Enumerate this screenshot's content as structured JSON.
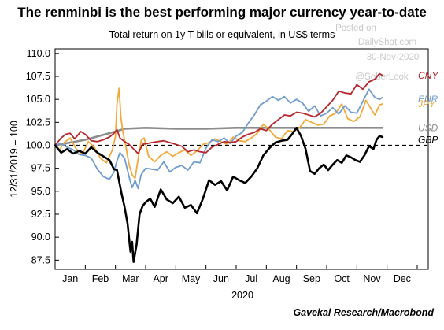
{
  "chart_data": {
    "type": "line",
    "title": "The renminbi is the best performing major currency year-to-date",
    "subtitle": "Total return on 1y T-bills or equivalent, in US$ terms",
    "ylabel": "12/31/2019 = 100",
    "xlabel": "2020",
    "source": "Gavekal Research/Macrobond",
    "watermark": [
      "Posted on",
      "DailyShot.com",
      "30-Nov-2020",
      "@SoberLook"
    ],
    "ylim": [
      86.5,
      110.5
    ],
    "yticks": [
      "87.5",
      "90.0",
      "92.5",
      "95.0",
      "97.5",
      "100.0",
      "102.5",
      "105.0",
      "107.5",
      "110.0"
    ],
    "xlim": [
      0,
      12
    ],
    "month_labels": [
      "Jan",
      "Feb",
      "Mar",
      "Apr",
      "May",
      "Jun",
      "Jul",
      "Aug",
      "Sep",
      "Oct",
      "Nov",
      "Dec"
    ],
    "reference_line": {
      "y": 100,
      "style": "dashed"
    },
    "grid": false,
    "series": [
      {
        "name": "USD",
        "color": "#8c8c8c",
        "width": 2.6,
        "label_y": 101.9,
        "points": [
          [
            0,
            100
          ],
          [
            1,
            100.6
          ],
          [
            2,
            101.5
          ],
          [
            2.3,
            101.8
          ],
          [
            3,
            101.9
          ],
          [
            4,
            101.8
          ],
          [
            5,
            101.8
          ],
          [
            6,
            101.9
          ],
          [
            7,
            101.9
          ],
          [
            8,
            101.9
          ],
          [
            9,
            101.9
          ],
          [
            10,
            101.9
          ],
          [
            10.85,
            101.9
          ]
        ]
      },
      {
        "name": "JPY",
        "color": "#f2a93b",
        "width": 1.8,
        "label_y": 104.5,
        "points": [
          [
            0,
            100
          ],
          [
            0.15,
            99.5
          ],
          [
            0.3,
            100.3
          ],
          [
            0.5,
            100.8
          ],
          [
            0.7,
            99.6
          ],
          [
            0.9,
            99
          ],
          [
            1.1,
            100.4
          ],
          [
            1.3,
            99.8
          ],
          [
            1.5,
            98.6
          ],
          [
            1.7,
            98.1
          ],
          [
            1.9,
            99.5
          ],
          [
            2.0,
            101
          ],
          [
            2.05,
            104.5
          ],
          [
            2.12,
            106.2
          ],
          [
            2.18,
            103
          ],
          [
            2.25,
            101.4
          ],
          [
            2.35,
            99.8
          ],
          [
            2.45,
            97.9
          ],
          [
            2.55,
            96.8
          ],
          [
            2.65,
            96.4
          ],
          [
            2.75,
            98.5
          ],
          [
            2.85,
            100.5
          ],
          [
            2.95,
            100.8
          ],
          [
            3.1,
            98.8
          ],
          [
            3.3,
            98.2
          ],
          [
            3.5,
            98.9
          ],
          [
            3.7,
            99.3
          ],
          [
            3.9,
            98.8
          ],
          [
            4.1,
            99.2
          ],
          [
            4.3,
            99.5
          ],
          [
            4.5,
            98.9
          ],
          [
            4.7,
            99.4
          ],
          [
            4.9,
            100.1
          ],
          [
            5.1,
            100.3
          ],
          [
            5.3,
            100.7
          ],
          [
            5.5,
            100.4
          ],
          [
            5.7,
            100.1
          ],
          [
            5.9,
            100.9
          ],
          [
            6.1,
            100.5
          ],
          [
            6.3,
            100.4
          ],
          [
            6.5,
            100.8
          ],
          [
            6.7,
            101.3
          ],
          [
            6.9,
            102.3
          ],
          [
            7.1,
            101.7
          ],
          [
            7.3,
            100.9
          ],
          [
            7.5,
            100.7
          ],
          [
            7.7,
            101.6
          ],
          [
            7.9,
            101.5
          ],
          [
            8.1,
            101.9
          ],
          [
            8.3,
            102.8
          ],
          [
            8.5,
            102.5
          ],
          [
            8.7,
            102.2
          ],
          [
            8.9,
            102.3
          ],
          [
            9.1,
            103.2
          ],
          [
            9.3,
            103.5
          ],
          [
            9.5,
            104.5
          ],
          [
            9.7,
            102.9
          ],
          [
            9.9,
            102.6
          ],
          [
            10.1,
            103.1
          ],
          [
            10.3,
            104.9
          ],
          [
            10.5,
            103.8
          ],
          [
            10.6,
            103.3
          ],
          [
            10.75,
            104.4
          ],
          [
            10.85,
            104.5
          ]
        ]
      },
      {
        "name": "EUR",
        "color": "#6f9ccf",
        "width": 1.8,
        "label_y": 105.0,
        "points": [
          [
            0,
            100
          ],
          [
            0.2,
            100.2
          ],
          [
            0.4,
            99.8
          ],
          [
            0.6,
            99.5
          ],
          [
            0.8,
            99
          ],
          [
            1.0,
            98.9
          ],
          [
            1.2,
            98.6
          ],
          [
            1.4,
            97.4
          ],
          [
            1.6,
            96.6
          ],
          [
            1.8,
            96.3
          ],
          [
            1.95,
            97.1
          ],
          [
            2.05,
            98.3
          ],
          [
            2.15,
            99.2
          ],
          [
            2.3,
            98.6
          ],
          [
            2.45,
            96.6
          ],
          [
            2.55,
            95.4
          ],
          [
            2.65,
            96.2
          ],
          [
            2.75,
            95.3
          ],
          [
            2.85,
            96.8
          ],
          [
            3.0,
            97.5
          ],
          [
            3.2,
            97.4
          ],
          [
            3.4,
            97.3
          ],
          [
            3.6,
            98.2
          ],
          [
            3.8,
            97.1
          ],
          [
            4.0,
            97.6
          ],
          [
            4.2,
            97.8
          ],
          [
            4.4,
            97.3
          ],
          [
            4.6,
            98.2
          ],
          [
            4.8,
            98.1
          ],
          [
            5.0,
            99.7
          ],
          [
            5.2,
            100.6
          ],
          [
            5.4,
            100.4
          ],
          [
            5.6,
            100.8
          ],
          [
            5.8,
            100.2
          ],
          [
            6.0,
            101
          ],
          [
            6.2,
            101.4
          ],
          [
            6.4,
            102.4
          ],
          [
            6.6,
            103.3
          ],
          [
            6.8,
            104.4
          ],
          [
            7.0,
            104.8
          ],
          [
            7.2,
            105.3
          ],
          [
            7.4,
            104.9
          ],
          [
            7.6,
            105.3
          ],
          [
            7.8,
            104.6
          ],
          [
            8.0,
            105
          ],
          [
            8.2,
            104.6
          ],
          [
            8.4,
            103.7
          ],
          [
            8.6,
            104.3
          ],
          [
            8.8,
            103.2
          ],
          [
            9.0,
            103.5
          ],
          [
            9.2,
            104.1
          ],
          [
            9.4,
            103.4
          ],
          [
            9.6,
            104.3
          ],
          [
            9.8,
            103.6
          ],
          [
            10.0,
            103.5
          ],
          [
            10.2,
            104.8
          ],
          [
            10.4,
            106.1
          ],
          [
            10.6,
            105.2
          ],
          [
            10.75,
            105
          ],
          [
            10.85,
            105.2
          ]
        ]
      },
      {
        "name": "CNY",
        "color": "#b5282e",
        "width": 1.8,
        "label_y": 107.6,
        "points": [
          [
            0,
            100
          ],
          [
            0.2,
            100.8
          ],
          [
            0.35,
            101.2
          ],
          [
            0.5,
            101.3
          ],
          [
            0.65,
            100.7
          ],
          [
            0.85,
            101.5
          ],
          [
            1.0,
            101.2
          ],
          [
            1.2,
            100.5
          ],
          [
            1.4,
            100.4
          ],
          [
            1.6,
            100.6
          ],
          [
            1.8,
            100.9
          ],
          [
            1.95,
            101.3
          ],
          [
            2.05,
            101.7
          ],
          [
            2.15,
            100.8
          ],
          [
            2.3,
            100.4
          ],
          [
            2.45,
            100.1
          ],
          [
            2.6,
            99.6
          ],
          [
            2.75,
            99.1
          ],
          [
            2.9,
            100.1
          ],
          [
            3.05,
            100.2
          ],
          [
            3.2,
            100.3
          ],
          [
            3.4,
            100.4
          ],
          [
            3.6,
            100.5
          ],
          [
            3.8,
            100.3
          ],
          [
            4.0,
            100.1
          ],
          [
            4.2,
            99.9
          ],
          [
            4.4,
            99.3
          ],
          [
            4.6,
            99.5
          ],
          [
            4.8,
            99.3
          ],
          [
            5.0,
            99.2
          ],
          [
            5.2,
            99.8
          ],
          [
            5.4,
            100.1
          ],
          [
            5.6,
            100.4
          ],
          [
            5.8,
            100.3
          ],
          [
            6.0,
            100.4
          ],
          [
            6.2,
            100.9
          ],
          [
            6.4,
            101.2
          ],
          [
            6.6,
            101.4
          ],
          [
            6.8,
            101.8
          ],
          [
            7.0,
            101.6
          ],
          [
            7.2,
            102.3
          ],
          [
            7.4,
            102.8
          ],
          [
            7.6,
            103.3
          ],
          [
            7.8,
            103.2
          ],
          [
            8.0,
            103.6
          ],
          [
            8.2,
            103.5
          ],
          [
            8.4,
            103.3
          ],
          [
            8.6,
            103.1
          ],
          [
            8.8,
            103.5
          ],
          [
            9.0,
            104.2
          ],
          [
            9.2,
            104.9
          ],
          [
            9.4,
            105.9
          ],
          [
            9.6,
            105.7
          ],
          [
            9.8,
            105.6
          ],
          [
            10.0,
            106.6
          ],
          [
            10.2,
            106.1
          ],
          [
            10.4,
            106.9
          ],
          [
            10.6,
            107.2
          ],
          [
            10.75,
            107.8
          ],
          [
            10.85,
            107.6
          ]
        ]
      },
      {
        "name": "GBP",
        "color": "#000000",
        "width": 2.6,
        "label_y": 100.6,
        "points": [
          [
            0,
            100
          ],
          [
            0.2,
            99.2
          ],
          [
            0.4,
            99.6
          ],
          [
            0.6,
            99.1
          ],
          [
            0.8,
            99.4
          ],
          [
            1.0,
            99.1
          ],
          [
            1.2,
            99.8
          ],
          [
            1.4,
            99.2
          ],
          [
            1.6,
            98.8
          ],
          [
            1.8,
            98.4
          ],
          [
            1.95,
            97.4
          ],
          [
            2.05,
            97.3
          ],
          [
            2.2,
            94.8
          ],
          [
            2.3,
            93.3
          ],
          [
            2.4,
            91.5
          ],
          [
            2.5,
            88.4
          ],
          [
            2.55,
            89.5
          ],
          [
            2.6,
            87.3
          ],
          [
            2.7,
            89.2
          ],
          [
            2.8,
            92.5
          ],
          [
            2.9,
            93.4
          ],
          [
            3.0,
            93.8
          ],
          [
            3.15,
            94.2
          ],
          [
            3.3,
            93.3
          ],
          [
            3.5,
            95.2
          ],
          [
            3.7,
            94.1
          ],
          [
            3.9,
            93.7
          ],
          [
            4.1,
            94.4
          ],
          [
            4.3,
            93.2
          ],
          [
            4.5,
            93.5
          ],
          [
            4.7,
            92.6
          ],
          [
            4.9,
            94.2
          ],
          [
            5.1,
            96.2
          ],
          [
            5.3,
            95.7
          ],
          [
            5.5,
            96.1
          ],
          [
            5.7,
            95.1
          ],
          [
            5.9,
            96.6
          ],
          [
            6.1,
            96.2
          ],
          [
            6.3,
            95.9
          ],
          [
            6.5,
            96.6
          ],
          [
            6.7,
            97.5
          ],
          [
            6.9,
            98.9
          ],
          [
            7.1,
            99.7
          ],
          [
            7.3,
            100.3
          ],
          [
            7.5,
            100.5
          ],
          [
            7.7,
            100.6
          ],
          [
            7.85,
            101.2
          ],
          [
            8.0,
            101.9
          ],
          [
            8.15,
            101
          ],
          [
            8.3,
            99.6
          ],
          [
            8.45,
            97.2
          ],
          [
            8.6,
            96.9
          ],
          [
            8.75,
            97.5
          ],
          [
            8.9,
            97.9
          ],
          [
            9.05,
            97.3
          ],
          [
            9.2,
            97.9
          ],
          [
            9.35,
            98.4
          ],
          [
            9.5,
            98.1
          ],
          [
            9.65,
            98.9
          ],
          [
            9.8,
            98.7
          ],
          [
            9.95,
            98.4
          ],
          [
            10.1,
            98.2
          ],
          [
            10.25,
            98.9
          ],
          [
            10.4,
            99.9
          ],
          [
            10.55,
            99.6
          ],
          [
            10.65,
            100.6
          ],
          [
            10.75,
            101
          ],
          [
            10.85,
            100.9
          ]
        ]
      }
    ]
  }
}
